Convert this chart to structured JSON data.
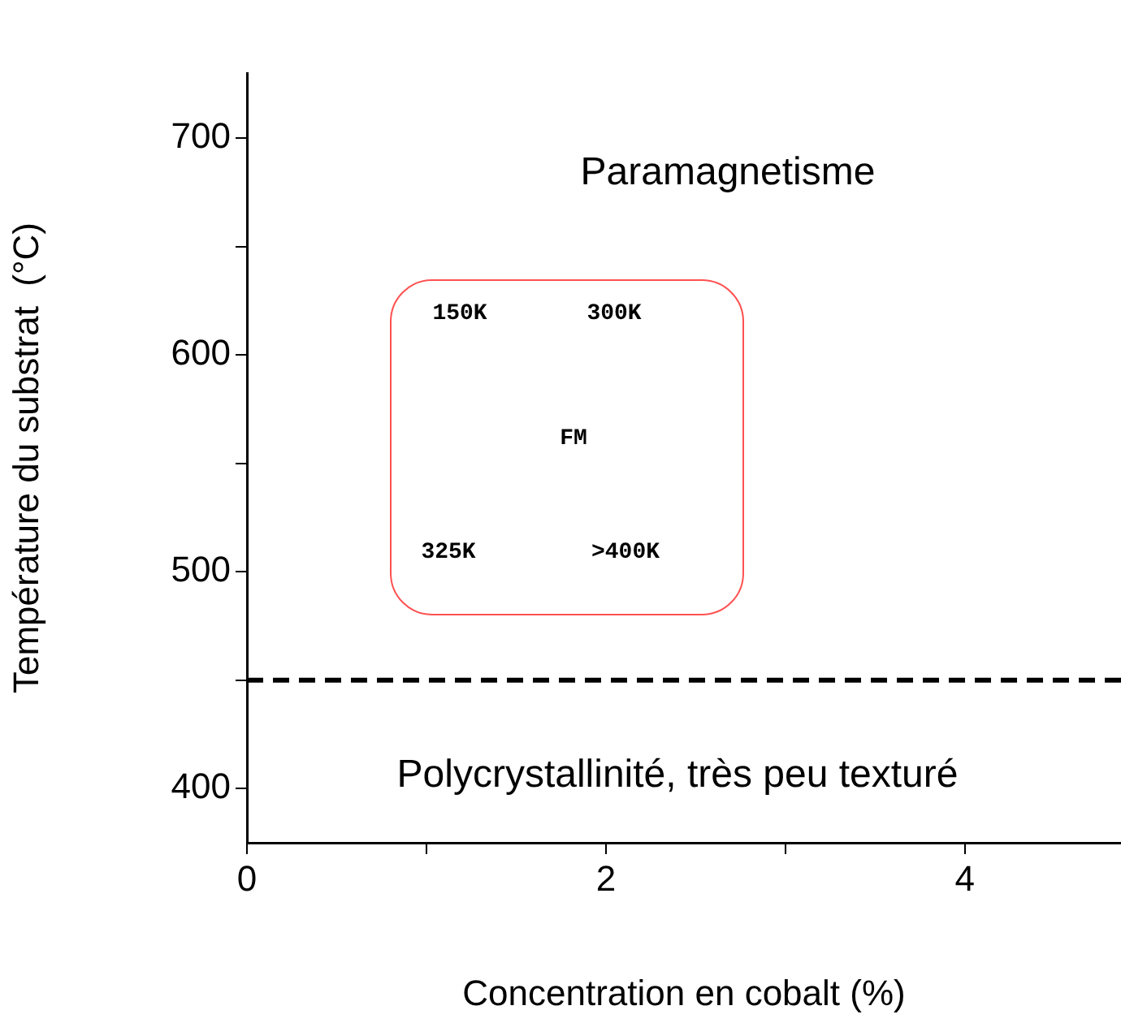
{
  "chart_data": {
    "type": "scatter",
    "xlabel": "Concentration en cobalt (%)",
    "ylabel": "Température du substrat  (°C)",
    "xlim": [
      0,
      4.87
    ],
    "xticks": [
      0,
      {
        "value": 1,
        "label": null
      },
      2,
      {
        "value": 3,
        "label": null
      },
      4
    ],
    "ylim": [
      375,
      730
    ],
    "yticks": [
      400,
      {
        "value": 450,
        "label": null
      },
      500,
      {
        "value": 550,
        "label": null
      },
      600,
      {
        "value": 650,
        "label": null
      },
      700
    ],
    "grid": false,
    "legend": false,
    "ref_lines": [
      {
        "axis": "y",
        "value": 450,
        "label": null,
        "color": "#000000",
        "line_style": "dashed"
      }
    ],
    "annotations": [
      "Paramagnetisme",
      "150K",
      "300K",
      "FM",
      "325K",
      ">400K",
      "Polycrystallinité, très peu texturé"
    ]
  }
}
